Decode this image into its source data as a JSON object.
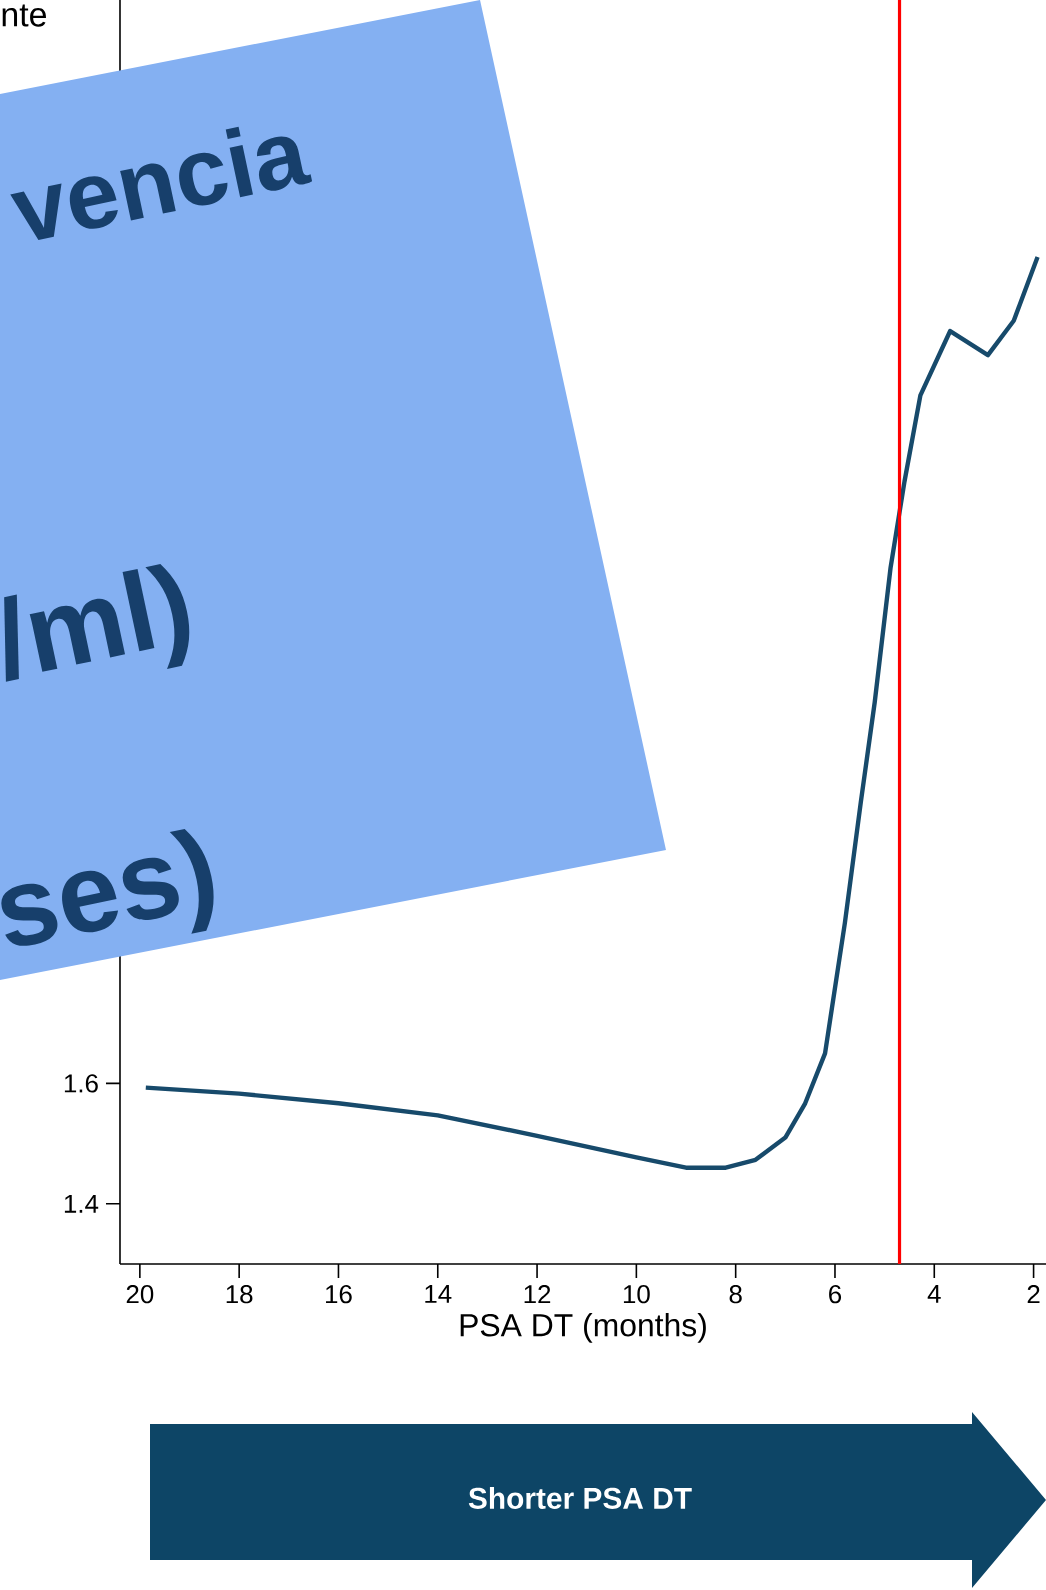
{
  "chart_data": {
    "type": "line",
    "xlabel": "PSA DT (months)",
    "x": [
      19.88,
      18,
      16,
      14,
      12,
      10,
      9,
      8.2,
      7.6,
      7,
      6.6,
      6.2,
      5.8,
      5.48,
      5.2,
      4.88,
      4.6,
      4.28,
      3.68,
      2.92,
      2.4,
      1.92
    ],
    "values": [
      1.593,
      1.583,
      1.567,
      1.547,
      1.513,
      1.477,
      1.46,
      1.46,
      1.473,
      1.51,
      1.567,
      1.65,
      1.867,
      2.067,
      2.233,
      2.457,
      2.6,
      2.743,
      2.85,
      2.81,
      2.867,
      2.973
    ],
    "color": "#174a6b",
    "xlim": [
      20.4,
      1.75
    ],
    "ylim": [
      1.3,
      3.4
    ],
    "xticks": [
      20,
      18,
      16,
      14,
      12,
      10,
      8,
      6,
      4,
      2
    ],
    "yticks": [
      1.4,
      1.6
    ],
    "ref_lines": [
      {
        "axis": "x",
        "value": 4.7,
        "color": "#ff0000"
      }
    ],
    "annotations": [
      "nte",
      "vencia",
      "/ml)",
      "ses)",
      "Shorter PSA DT"
    ],
    "grid": false,
    "marker": "none",
    "line_style": "solid"
  }
}
